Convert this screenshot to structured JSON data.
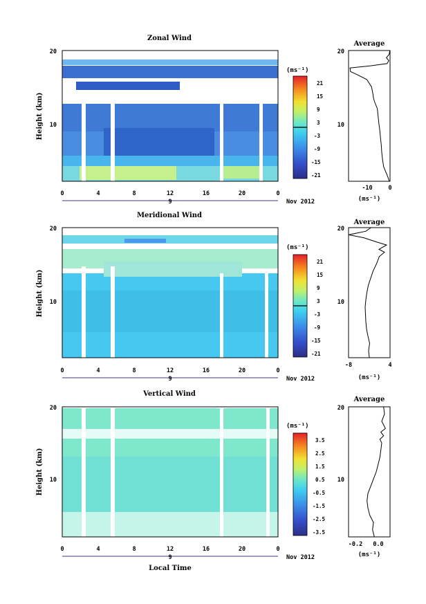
{
  "chart_data": [
    {
      "type": "heatmap",
      "title": "Zonal Wind",
      "ylabel": "Height (km)",
      "xlabel": "",
      "x_ticks": [
        "0",
        "4",
        "8",
        "12",
        "16",
        "20",
        "0"
      ],
      "y_ticks": [
        "10",
        "20"
      ],
      "date_label": "9",
      "month_label": "Nov 2012",
      "ylim": [
        2,
        20
      ],
      "xlim": [
        0,
        24
      ],
      "colorbar": {
        "unit_label": "(ms⁻¹)",
        "ticks": [
          "21",
          "15",
          "9",
          "3",
          "-3",
          "-9",
          "-15",
          "-21"
        ],
        "range": [
          -24,
          24
        ],
        "zero_contour": true
      }
    },
    {
      "type": "heatmap",
      "title": "Meridional Wind",
      "ylabel": "Height (km)",
      "xlabel": "",
      "x_ticks": [
        "0",
        "4",
        "8",
        "12",
        "16",
        "20",
        "0"
      ],
      "y_ticks": [
        "10",
        "20"
      ],
      "date_label": "9",
      "month_label": "Nov 2012",
      "ylim": [
        2,
        20
      ],
      "xlim": [
        0,
        24
      ],
      "colorbar": {
        "unit_label": "(ms⁻¹)",
        "ticks": [
          "21",
          "15",
          "9",
          "3",
          "-3",
          "-9",
          "-15",
          "-21"
        ],
        "range": [
          -24,
          24
        ],
        "zero_contour": true
      }
    },
    {
      "type": "heatmap",
      "title": "Vertical Wind",
      "ylabel": "Height (km)",
      "xlabel": "Local Time",
      "x_ticks": [
        "0",
        "4",
        "8",
        "12",
        "16",
        "20",
        "0"
      ],
      "y_ticks": [
        "10",
        "20"
      ],
      "date_label": "9",
      "month_label": "Nov 2012",
      "ylim": [
        2,
        20
      ],
      "xlim": [
        0,
        24
      ],
      "colorbar": {
        "unit_label": "(ms⁻¹)",
        "ticks": [
          "3.5",
          "2.5",
          "1.5",
          "0.5",
          "-0.5",
          "-1.5",
          "-2.5",
          "-3.5"
        ],
        "range": [
          -4,
          4
        ],
        "zero_contour": false
      }
    },
    {
      "type": "line",
      "title": "Average",
      "xlabel": "(ms⁻¹)",
      "x_ticks": [
        "-10",
        "0"
      ],
      "xlim": [
        -17,
        0
      ],
      "y_ticks": [
        "10",
        "20"
      ],
      "ylim": [
        2,
        20
      ],
      "series": [
        {
          "points": [
            [
              -0.3,
              2.0
            ],
            [
              -0.8,
              2.5
            ],
            [
              -1.4,
              3.0
            ],
            [
              -2.0,
              3.5
            ],
            [
              -2.6,
              4.0
            ],
            [
              -3.1,
              5.0
            ],
            [
              -3.4,
              6.0
            ],
            [
              -3.6,
              7.0
            ],
            [
              -3.9,
              8.0
            ],
            [
              -4.2,
              9.0
            ],
            [
              -4.6,
              10.0
            ],
            [
              -4.9,
              11.0
            ],
            [
              -5.2,
              12.0
            ],
            [
              -6.4,
              13.0
            ],
            [
              -6.8,
              13.5
            ],
            [
              -7.0,
              14.0
            ],
            [
              -7.6,
              15.0
            ],
            [
              -9.5,
              16.0
            ],
            [
              -13.0,
              16.6
            ],
            [
              -16.2,
              17.1
            ],
            [
              -16.4,
              17.6
            ],
            [
              -8.0,
              17.9
            ],
            [
              -1.2,
              18.2
            ],
            [
              -0.5,
              18.6
            ],
            [
              -1.5,
              19.0
            ],
            [
              -0.3,
              19.5
            ],
            [
              -0.1,
              20.0
            ]
          ]
        }
      ]
    },
    {
      "type": "line",
      "title": "Average",
      "xlabel": "(ms⁻¹)",
      "x_ticks": [
        "-8",
        "4"
      ],
      "xlim": [
        -8,
        4
      ],
      "y_ticks": [
        "10",
        "20"
      ],
      "ylim": [
        2,
        20
      ],
      "series": [
        {
          "points": [
            [
              -2.0,
              2.0
            ],
            [
              -2.2,
              3.0
            ],
            [
              -1.9,
              4.0
            ],
            [
              -2.4,
              5.0
            ],
            [
              -2.8,
              6.0
            ],
            [
              -3.0,
              7.0
            ],
            [
              -3.1,
              8.0
            ],
            [
              -3.2,
              9.0
            ],
            [
              -3.0,
              10.0
            ],
            [
              -2.7,
              11.0
            ],
            [
              -2.3,
              12.0
            ],
            [
              -1.6,
              13.0
            ],
            [
              -0.9,
              14.0
            ],
            [
              0.1,
              15.0
            ],
            [
              0.9,
              16.0
            ],
            [
              2.4,
              16.6
            ],
            [
              0.8,
              17.0
            ],
            [
              3.0,
              17.6
            ],
            [
              0.2,
              18.0
            ],
            [
              -3.6,
              18.6
            ],
            [
              -8.0,
              19.0
            ],
            [
              -3.0,
              19.5
            ],
            [
              -1.5,
              20.0
            ]
          ]
        }
      ]
    },
    {
      "type": "line",
      "title": "Average",
      "xlabel": "(ms⁻¹)",
      "x_ticks": [
        "-0.2",
        "0.0"
      ],
      "xlim": [
        -0.3,
        0.15
      ],
      "y_ticks": [
        "10",
        "20"
      ],
      "ylim": [
        2,
        20
      ],
      "series": [
        {
          "points": [
            [
              -0.02,
              2.0
            ],
            [
              -0.04,
              3.0
            ],
            [
              -0.03,
              4.0
            ],
            [
              -0.07,
              5.0
            ],
            [
              -0.09,
              6.0
            ],
            [
              -0.1,
              7.0
            ],
            [
              -0.09,
              8.0
            ],
            [
              -0.06,
              9.0
            ],
            [
              -0.03,
              10.0
            ],
            [
              0.0,
              11.0
            ],
            [
              0.02,
              12.0
            ],
            [
              0.04,
              13.0
            ],
            [
              0.05,
              14.0
            ],
            [
              0.06,
              15.0
            ],
            [
              0.04,
              15.5
            ],
            [
              0.08,
              16.0
            ],
            [
              0.05,
              16.5
            ],
            [
              0.1,
              17.0
            ],
            [
              0.06,
              18.0
            ],
            [
              0.09,
              19.0
            ],
            [
              0.08,
              20.0
            ]
          ]
        }
      ]
    }
  ]
}
